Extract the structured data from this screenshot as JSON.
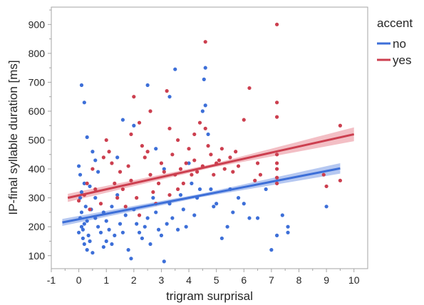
{
  "colors": {
    "no": "#3d6fd8",
    "yes": "#cc3f4f",
    "no_band": "#9db6ec",
    "yes_band": "#efa9b1",
    "frame": "#a6a6a6",
    "grid": "#e6e6e6"
  },
  "chart_data": {
    "type": "scatter",
    "xlabel": "trigram surprisal",
    "ylabel": "IP-final syllable duration [ms]",
    "xlim": [
      -1,
      10.5
    ],
    "ylim": [
      55,
      960
    ],
    "xticks": [
      -1,
      0,
      1,
      2,
      3,
      4,
      5,
      6,
      7,
      8,
      9,
      10
    ],
    "yticks": [
      100,
      200,
      300,
      400,
      500,
      600,
      700,
      800,
      900
    ],
    "grid": false,
    "legend": {
      "title": "accent",
      "position": "right",
      "entries": [
        "no",
        "yes"
      ]
    },
    "fits": [
      {
        "name": "no",
        "x0": -0.6,
        "y0": 215,
        "x1": 9.5,
        "y1": 402,
        "band_start": 12,
        "band_mid": 6,
        "band_end": 18
      },
      {
        "name": "yes",
        "x0": -0.4,
        "y0": 300,
        "x1": 10.0,
        "y1": 520,
        "band_start": 14,
        "band_mid": 6,
        "band_end": 24
      }
    ],
    "series": [
      {
        "name": "no",
        "points": [
          [
            0.1,
            200
          ],
          [
            0.05,
            230
          ],
          [
            0.0,
            180
          ],
          [
            0.15,
            160
          ],
          [
            0.2,
            210
          ],
          [
            0.1,
            250
          ],
          [
            0.05,
            300
          ],
          [
            0.2,
            140
          ],
          [
            0.3,
            120
          ],
          [
            0.25,
            270
          ],
          [
            0.1,
            320
          ],
          [
            0.0,
            410
          ],
          [
            0.05,
            380
          ],
          [
            0.2,
            350
          ],
          [
            0.15,
            190
          ],
          [
            0.3,
            220
          ],
          [
            0.35,
            170
          ],
          [
            0.4,
            150
          ],
          [
            0.45,
            260
          ],
          [
            0.5,
            110
          ],
          [
            0.1,
            690
          ],
          [
            0.2,
            630
          ],
          [
            0.3,
            510
          ],
          [
            0.5,
            460
          ],
          [
            0.6,
            230
          ],
          [
            0.7,
            200
          ],
          [
            0.8,
            180
          ],
          [
            0.6,
            300
          ],
          [
            0.9,
            250
          ],
          [
            1.0,
            220
          ],
          [
            1.1,
            190
          ],
          [
            1.2,
            270
          ],
          [
            1.3,
            170
          ],
          [
            1.4,
            310
          ],
          [
            1.5,
            210
          ],
          [
            1.0,
            150
          ],
          [
            0.9,
            130
          ],
          [
            1.2,
            140
          ],
          [
            1.6,
            180
          ],
          [
            1.7,
            240
          ],
          [
            1.8,
            120
          ],
          [
            1.9,
            90
          ],
          [
            2.0,
            260
          ],
          [
            2.1,
            210
          ],
          [
            2.2,
            180
          ],
          [
            2.3,
            160
          ],
          [
            2.4,
            200
          ],
          [
            2.5,
            230
          ],
          [
            2.6,
            140
          ],
          [
            2.7,
            300
          ],
          [
            2.8,
            250
          ],
          [
            2.9,
            190
          ],
          [
            3.0,
            170
          ],
          [
            3.1,
            80
          ],
          [
            3.2,
            210
          ],
          [
            3.3,
            280
          ],
          [
            3.4,
            230
          ],
          [
            3.5,
            745
          ],
          [
            3.6,
            190
          ],
          [
            3.7,
            310
          ],
          [
            3.8,
            260
          ],
          [
            3.9,
            200
          ],
          [
            4.0,
            420
          ],
          [
            4.1,
            350
          ],
          [
            4.2,
            240
          ],
          [
            4.3,
            300
          ],
          [
            4.4,
            330
          ],
          [
            4.5,
            600
          ],
          [
            4.55,
            710
          ],
          [
            4.6,
            750
          ],
          [
            4.7,
            520
          ],
          [
            4.8,
            330
          ],
          [
            4.9,
            270
          ],
          [
            5.0,
            280
          ],
          [
            5.2,
            160
          ],
          [
            5.4,
            200
          ],
          [
            5.5,
            330
          ],
          [
            5.6,
            250
          ],
          [
            5.8,
            300
          ],
          [
            6.0,
            280
          ],
          [
            6.2,
            230
          ],
          [
            6.5,
            230
          ],
          [
            6.8,
            330
          ],
          [
            7.0,
            120
          ],
          [
            7.2,
            170
          ],
          [
            7.4,
            240
          ],
          [
            7.6,
            180
          ],
          [
            7.6,
            200
          ],
          [
            9.0,
            270
          ],
          [
            1.6,
            570
          ],
          [
            2.5,
            690
          ],
          [
            2.8,
            470
          ],
          [
            3.1,
            400
          ],
          [
            1.4,
            440
          ],
          [
            0.7,
            390
          ],
          [
            0.4,
            340
          ],
          [
            0.6,
            430
          ],
          [
            2.0,
            550
          ],
          [
            4.6,
            620
          ],
          [
            3.3,
            650
          ]
        ]
      },
      {
        "name": "yes",
        "points": [
          [
            0.0,
            290
          ],
          [
            0.2,
            310
          ],
          [
            0.4,
            260
          ],
          [
            0.6,
            330
          ],
          [
            0.8,
            280
          ],
          [
            1.0,
            500
          ],
          [
            1.1,
            460
          ],
          [
            1.2,
            420
          ],
          [
            1.3,
            350
          ],
          [
            1.4,
            300
          ],
          [
            1.5,
            390
          ],
          [
            1.6,
            330
          ],
          [
            1.7,
            270
          ],
          [
            1.8,
            410
          ],
          [
            1.9,
            360
          ],
          [
            2.0,
            650
          ],
          [
            2.1,
            300
          ],
          [
            2.2,
            240
          ],
          [
            2.3,
            480
          ],
          [
            2.4,
            440
          ],
          [
            2.5,
            460
          ],
          [
            2.6,
            380
          ],
          [
            2.7,
            320
          ],
          [
            2.8,
            280
          ],
          [
            2.9,
            350
          ],
          [
            3.0,
            420
          ],
          [
            3.1,
            390
          ],
          [
            3.2,
            670
          ],
          [
            3.3,
            310
          ],
          [
            3.4,
            450
          ],
          [
            3.5,
            380
          ],
          [
            3.6,
            330
          ],
          [
            3.7,
            400
          ],
          [
            3.8,
            350
          ],
          [
            3.9,
            420
          ],
          [
            4.0,
            470
          ],
          [
            4.1,
            380
          ],
          [
            4.2,
            430
          ],
          [
            4.3,
            390
          ],
          [
            4.4,
            560
          ],
          [
            4.5,
            410
          ],
          [
            4.6,
            840
          ],
          [
            4.7,
            480
          ],
          [
            4.8,
            450
          ],
          [
            4.9,
            380
          ],
          [
            5.0,
            420
          ],
          [
            5.1,
            430
          ],
          [
            5.3,
            400
          ],
          [
            5.5,
            440
          ],
          [
            5.6,
            390
          ],
          [
            5.8,
            410
          ],
          [
            6.0,
            570
          ],
          [
            6.2,
            680
          ],
          [
            6.4,
            360
          ],
          [
            6.6,
            380
          ],
          [
            7.2,
            900
          ],
          [
            7.2,
            630
          ],
          [
            7.2,
            580
          ],
          [
            7.2,
            450
          ],
          [
            7.2,
            400
          ],
          [
            7.2,
            370
          ],
          [
            7.2,
            420
          ],
          [
            7.2,
            350
          ],
          [
            8.9,
            380
          ],
          [
            9.0,
            340
          ],
          [
            9.5,
            550
          ],
          [
            9.5,
            360
          ],
          [
            0.3,
            350
          ],
          [
            0.5,
            400
          ],
          [
            0.9,
            440
          ],
          [
            1.9,
            520
          ],
          [
            2.2,
            560
          ],
          [
            2.6,
            600
          ],
          [
            3.3,
            540
          ],
          [
            3.6,
            500
          ],
          [
            4.2,
            520
          ],
          [
            4.6,
            540
          ],
          [
            5.2,
            470
          ],
          [
            5.7,
            460
          ],
          [
            6.5,
            420
          ]
        ]
      }
    ]
  }
}
